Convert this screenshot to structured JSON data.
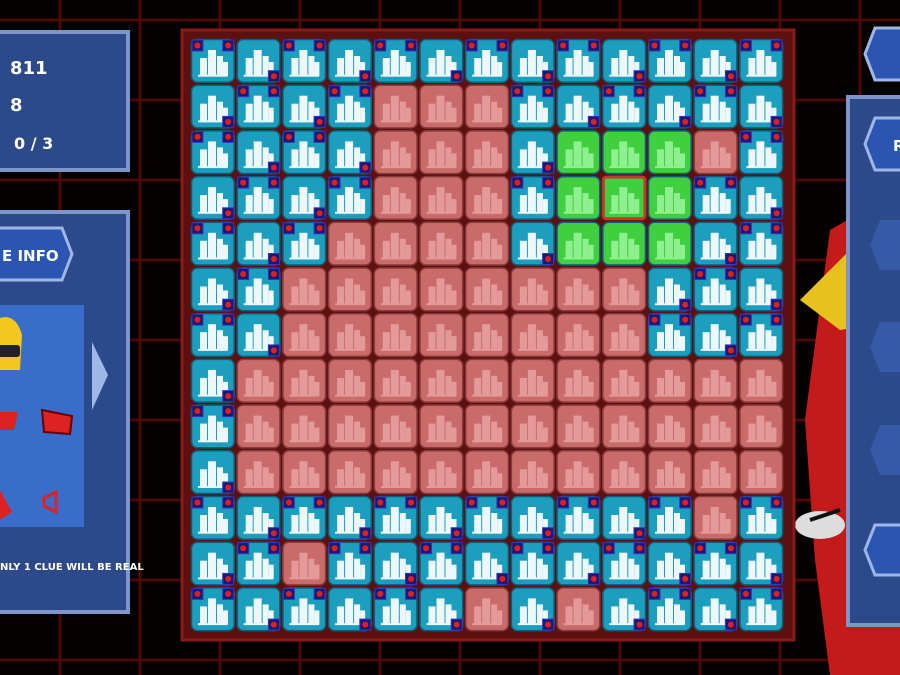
{
  "stats": {
    "score": "811",
    "level": "8",
    "clues": "0 / 3"
  },
  "info_panel": {
    "title": "E INFO",
    "note": "NLY 1 CLUE WILL BE REAL"
  },
  "right_panel": {
    "button": "R"
  }
}
